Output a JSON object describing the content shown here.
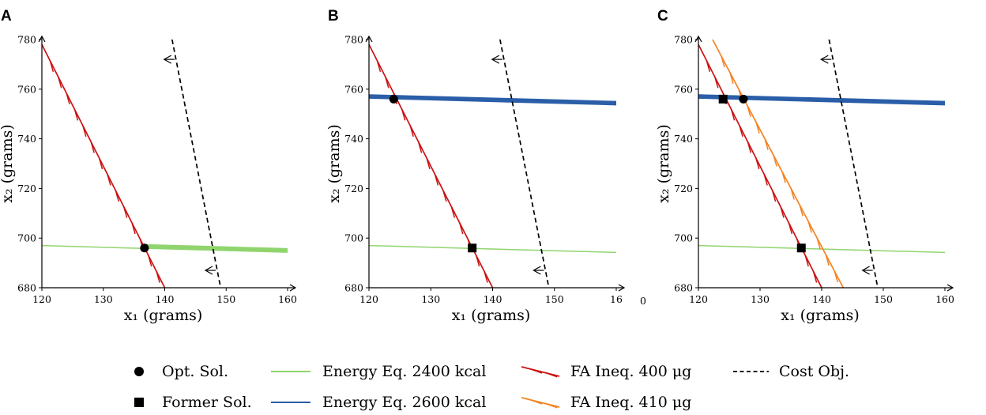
{
  "chart_data": [
    {
      "type": "line",
      "panel": "A",
      "xlabel": "x₁ (grams)",
      "ylabel": "x₂ (grams)",
      "xlim": [
        120,
        160
      ],
      "ylim": [
        680,
        780
      ],
      "xticks": [
        "120",
        "130",
        "140",
        "150",
        "160"
      ],
      "yticks": [
        "680",
        "700",
        "720",
        "740",
        "760",
        "780"
      ],
      "series": [
        {
          "name": "Energy Eq. 2400 kcal",
          "kind": "energy_band",
          "color": "#90d46e",
          "x": [
            120,
            160
          ],
          "y": [
            697.0,
            694.2
          ],
          "band": [
            0,
            1.6
          ],
          "band_from_x": 137
        },
        {
          "name": "FA Ineq. 400 μg",
          "kind": "fa",
          "color": "#cc1111",
          "x": [
            120,
            140
          ],
          "y": [
            778,
            680
          ]
        },
        {
          "name": "Cost Obj.",
          "kind": "cost",
          "color": "#000000",
          "x": [
            141.2,
            149.1
          ],
          "y": [
            780,
            680
          ],
          "arrows_y": [
            772,
            687
          ]
        }
      ],
      "markers": [
        {
          "name": "Opt. Sol.",
          "shape": "circle",
          "x": 136.7,
          "y": 696
        }
      ]
    },
    {
      "type": "line",
      "panel": "B",
      "xlabel": "x₁ (grams)",
      "ylabel": "x₂ (grams)",
      "xlim": [
        120,
        160
      ],
      "ylim": [
        680,
        780
      ],
      "xticks": [
        "120",
        "130",
        "140",
        "150",
        "16"
      ],
      "yticks": [
        "680",
        "700",
        "720",
        "740",
        "760",
        "780"
      ],
      "stray_label": "0",
      "series": [
        {
          "name": "Energy Eq. 2400 kcal",
          "kind": "energy",
          "color": "#90d46e",
          "x": [
            120,
            160
          ],
          "y": [
            697.0,
            694.2
          ]
        },
        {
          "name": "Energy Eq. 2600 kcal",
          "kind": "energy_band",
          "color": "#2b5ea8",
          "x": [
            120,
            160
          ],
          "y": [
            756.3,
            753.6
          ],
          "band": [
            0,
            1.5
          ],
          "band_from_x": 120
        },
        {
          "name": "FA Ineq. 400 μg",
          "kind": "fa",
          "color": "#cc1111",
          "x": [
            120,
            140
          ],
          "y": [
            778,
            680
          ]
        },
        {
          "name": "Cost Obj.",
          "kind": "cost",
          "color": "#000000",
          "x": [
            141.2,
            149.1
          ],
          "y": [
            780,
            680
          ],
          "arrows_y": [
            772,
            687
          ]
        }
      ],
      "markers": [
        {
          "name": "Opt. Sol.",
          "shape": "circle",
          "x": 124,
          "y": 756
        },
        {
          "name": "Former Sol.",
          "shape": "square",
          "x": 136.7,
          "y": 696
        }
      ]
    },
    {
      "type": "line",
      "panel": "C",
      "xlabel": "x₁ (grams)",
      "ylabel": "x₂ (grams)",
      "xlim": [
        120,
        160
      ],
      "ylim": [
        680,
        780
      ],
      "xticks": [
        "120",
        "130",
        "140",
        "150",
        "160"
      ],
      "yticks": [
        "680",
        "700",
        "720",
        "740",
        "760",
        "780"
      ],
      "series": [
        {
          "name": "Energy Eq. 2400 kcal",
          "kind": "energy",
          "color": "#90d46e",
          "x": [
            120,
            160
          ],
          "y": [
            697.0,
            694.2
          ]
        },
        {
          "name": "Energy Eq. 2600 kcal",
          "kind": "energy_band",
          "color": "#2b5ea8",
          "x": [
            120,
            160
          ],
          "y": [
            756.3,
            753.6
          ],
          "band": [
            0,
            1.5
          ],
          "band_from_x": 120
        },
        {
          "name": "FA Ineq. 400 μg",
          "kind": "fa",
          "color": "#cc1111",
          "x": [
            120,
            140
          ],
          "y": [
            778,
            680
          ]
        },
        {
          "name": "FA Ineq. 410 μg",
          "kind": "fa",
          "color": "#f58220",
          "x": [
            122.3,
            143.5
          ],
          "y": [
            780,
            680
          ]
        },
        {
          "name": "Cost Obj.",
          "kind": "cost",
          "color": "#000000",
          "x": [
            141.2,
            149.1
          ],
          "y": [
            780,
            680
          ],
          "arrows_y": [
            772,
            687
          ]
        }
      ],
      "markers": [
        {
          "name": "Opt. Sol.",
          "shape": "circle",
          "x": 127.3,
          "y": 756
        },
        {
          "name": "Former Sol.",
          "shape": "square",
          "x": 124,
          "y": 756
        },
        {
          "name": "Former Sol.",
          "shape": "square",
          "x": 136.7,
          "y": 696
        }
      ]
    }
  ],
  "legend": [
    {
      "label": "Opt. Sol.",
      "symbol": "circle",
      "color": "#000000"
    },
    {
      "label": "Former Sol.",
      "symbol": "square",
      "color": "#000000"
    },
    {
      "label": "Energy Eq. 2400 kcal",
      "symbol": "line",
      "color": "#90d46e"
    },
    {
      "label": "Energy Eq. 2600 kcal",
      "symbol": "line",
      "color": "#2b5ea8"
    },
    {
      "label": "FA Ineq. 400 μg",
      "symbol": "ineq",
      "color": "#cc1111"
    },
    {
      "label": "FA Ineq. 410 μg",
      "symbol": "ineq",
      "color": "#f58220"
    },
    {
      "label": "Cost Obj.",
      "symbol": "dashed",
      "color": "#000000"
    }
  ]
}
